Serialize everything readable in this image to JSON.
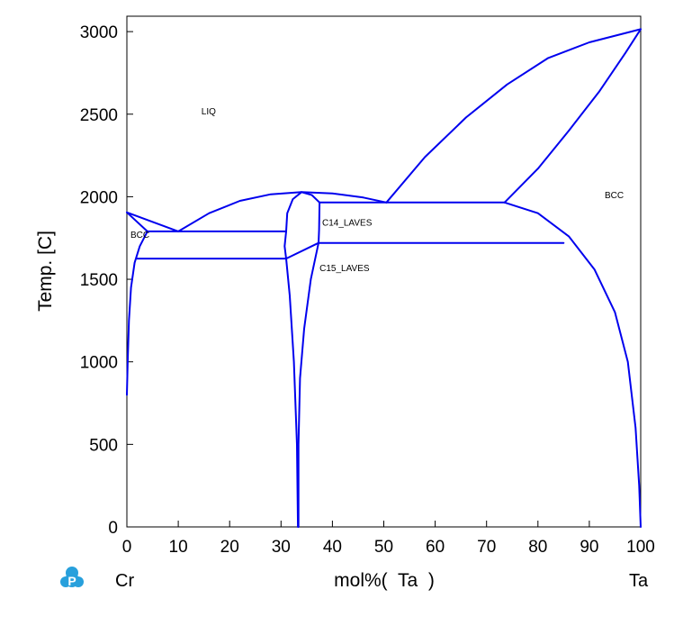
{
  "chart_data": {
    "type": "line",
    "title": "",
    "xlabel": "mol%(  Ta  )",
    "ylabel": "Temp.  [C]",
    "xlim": [
      0,
      100
    ],
    "ylim": [
      0,
      3100
    ],
    "x_ticks": [
      0,
      10,
      20,
      30,
      40,
      50,
      60,
      70,
      80,
      90,
      100
    ],
    "y_ticks": [
      0,
      500,
      1000,
      1500,
      2000,
      2500,
      3000
    ],
    "grid": false,
    "legend": "none",
    "line_color": "#0000ee",
    "left_element": "Cr",
    "right_element": "Ta",
    "region_labels": [
      {
        "text": "LIQ",
        "x": 14.5,
        "y": 2500
      },
      {
        "text": "BCC",
        "x": 93,
        "y": 1990
      },
      {
        "text": "BCC",
        "x": 0.7,
        "y": 1750
      },
      {
        "text": "C14_LAVES",
        "x": 38,
        "y": 1825
      },
      {
        "text": "C15_LAVES",
        "x": 37.5,
        "y": 1550
      }
    ],
    "series": [
      {
        "values": [
          [
            0,
            1905
          ],
          [
            4,
            1790
          ]
        ]
      },
      {
        "values": [
          [
            0,
            1905
          ],
          [
            10,
            1790
          ]
        ]
      },
      {
        "values": [
          [
            4,
            1790
          ],
          [
            31,
            1790
          ]
        ]
      },
      {
        "values": [
          [
            4,
            1790
          ],
          [
            2.5,
            1700
          ],
          [
            1.5,
            1600
          ],
          [
            0.8,
            1450
          ],
          [
            0.4,
            1250
          ],
          [
            0.15,
            1000
          ],
          [
            0,
            800
          ]
        ]
      },
      {
        "values": [
          [
            2,
            1625
          ],
          [
            31,
            1625
          ]
        ]
      },
      {
        "values": [
          [
            10,
            1790
          ],
          [
            16,
            1900
          ],
          [
            22,
            1975
          ],
          [
            28,
            2015
          ],
          [
            34,
            2028
          ],
          [
            40,
            2020
          ],
          [
            46,
            1995
          ],
          [
            50.5,
            1965
          ]
        ]
      },
      {
        "values": [
          [
            31,
            1790
          ],
          [
            31.2,
            1900
          ],
          [
            32.3,
            1985
          ],
          [
            34,
            2028
          ]
        ]
      },
      {
        "values": [
          [
            34,
            2028
          ],
          [
            36,
            2010
          ],
          [
            37.5,
            1965
          ]
        ]
      },
      {
        "values": [
          [
            37.5,
            1965
          ],
          [
            50.5,
            1965
          ],
          [
            73.5,
            1965
          ]
        ]
      },
      {
        "values": [
          [
            37.5,
            1965
          ],
          [
            37.4,
            1800
          ],
          [
            37.3,
            1720
          ]
        ]
      },
      {
        "values": [
          [
            37.3,
            1720
          ],
          [
            85,
            1720
          ]
        ]
      },
      {
        "values": [
          [
            31,
            1625
          ],
          [
            37.3,
            1720
          ]
        ]
      },
      {
        "values": [
          [
            31,
            1790
          ],
          [
            30.7,
            1700
          ],
          [
            31,
            1625
          ],
          [
            31.7,
            1400
          ],
          [
            32.5,
            1000
          ],
          [
            33.1,
            500
          ],
          [
            33.3,
            0
          ]
        ]
      },
      {
        "values": [
          [
            37.3,
            1720
          ],
          [
            35.8,
            1500
          ],
          [
            34.5,
            1200
          ],
          [
            33.7,
            900
          ],
          [
            33.4,
            500
          ],
          [
            33.4,
            0
          ]
        ]
      },
      {
        "values": [
          [
            50.5,
            1965
          ],
          [
            58,
            2240
          ],
          [
            66,
            2480
          ],
          [
            74,
            2680
          ],
          [
            82,
            2840
          ],
          [
            90,
            2935
          ],
          [
            100,
            3015
          ]
        ]
      },
      {
        "values": [
          [
            73.5,
            1965
          ],
          [
            80,
            2170
          ],
          [
            86,
            2400
          ],
          [
            92,
            2640
          ],
          [
            97,
            2870
          ],
          [
            100,
            3015
          ]
        ]
      },
      {
        "values": [
          [
            73.5,
            1965
          ],
          [
            80,
            1900
          ],
          [
            86,
            1760
          ],
          [
            91,
            1560
          ],
          [
            95,
            1300
          ],
          [
            97.5,
            1000
          ],
          [
            99,
            600
          ],
          [
            99.7,
            250
          ],
          [
            100,
            0
          ]
        ]
      }
    ]
  }
}
